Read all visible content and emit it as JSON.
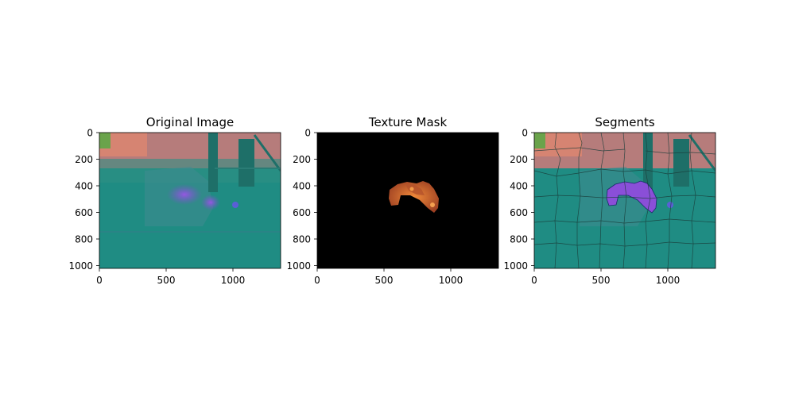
{
  "chart_data": [
    {
      "type": "image",
      "title": "Original Image",
      "xlim": [
        0,
        1360
      ],
      "ylim": [
        1024,
        0
      ],
      "xticks": [
        0,
        500,
        1000
      ],
      "yticks": [
        0,
        200,
        400,
        600,
        800,
        1000
      ]
    },
    {
      "type": "image",
      "title": "Texture Mask",
      "xlim": [
        0,
        1360
      ],
      "ylim": [
        1024,
        0
      ],
      "xticks": [
        0,
        500,
        1000
      ],
      "yticks": [
        0,
        200,
        400,
        600,
        800,
        1000
      ]
    },
    {
      "type": "image",
      "title": "Segments",
      "xlim": [
        0,
        1360
      ],
      "ylim": [
        1024,
        0
      ],
      "xticks": [
        0,
        500,
        1000
      ],
      "yticks": [
        0,
        200,
        400,
        600,
        800,
        1000
      ]
    }
  ],
  "colors": {
    "background_teal": "#1f8c83",
    "sky_pink": "#d9777a",
    "purple_object": "#8a4fd8",
    "mask_orange": "#d2692f",
    "mask_bg": "#000000",
    "segment_line": "#1a3d3a"
  }
}
